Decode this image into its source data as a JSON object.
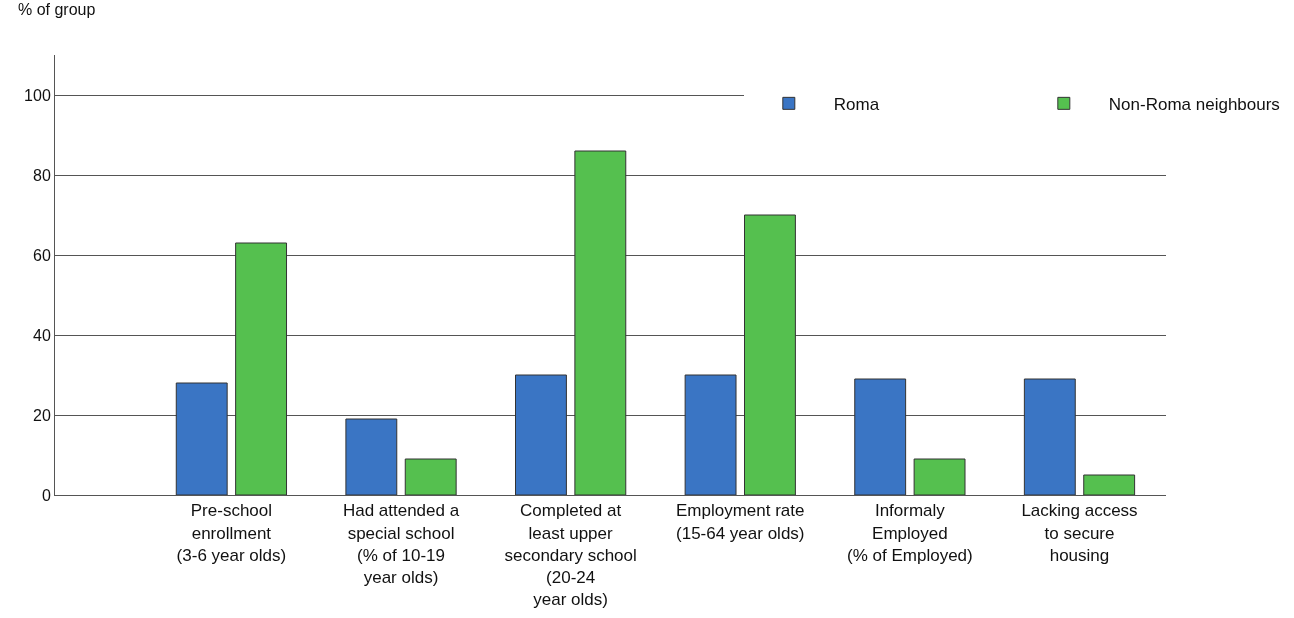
{
  "chart_data": {
    "type": "bar",
    "ylabel": "% of group",
    "categories": [
      "Pre-school\nenrollment\n(3-6 year olds)",
      "Had attended a\nspecial school\n(% of 10-19\nyear olds)",
      "Completed at\nleast upper\nsecondary school\n(20-24\nyear olds)",
      "Employment rate\n(15-64 year olds)",
      "Informaly\nEmployed\n(% of Employed)",
      "Lacking access\nto secure\nhousing"
    ],
    "series": [
      {
        "name": "Roma",
        "color": "#3a75c4",
        "values": [
          28,
          19,
          30,
          30,
          29,
          29
        ]
      },
      {
        "name": "Non-Roma neighbours",
        "color": "#55c04f",
        "values": [
          63,
          9,
          86,
          70,
          9,
          5
        ]
      }
    ],
    "ylim": [
      0,
      110
    ],
    "yticks": [
      0,
      20,
      40,
      60,
      80,
      100
    ],
    "grid": "y",
    "legend": "top right"
  }
}
